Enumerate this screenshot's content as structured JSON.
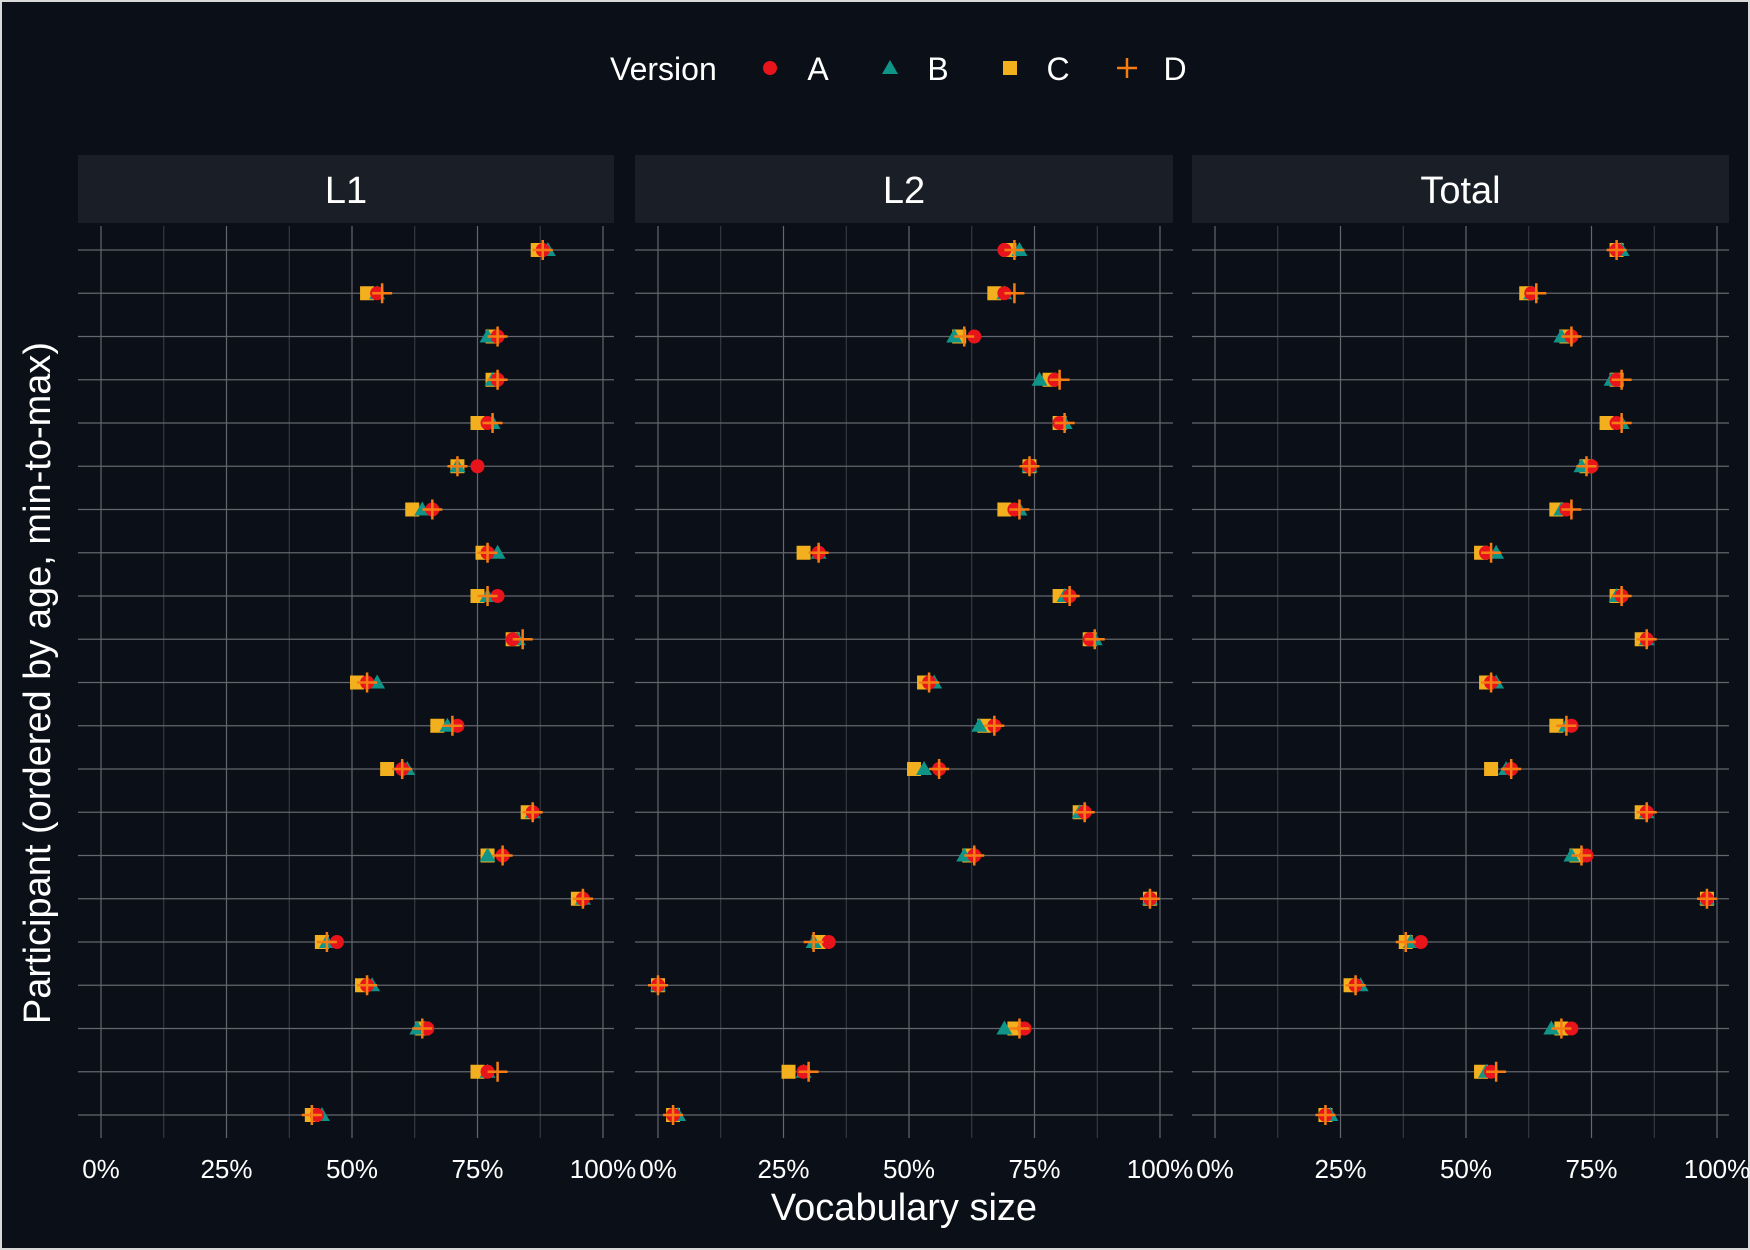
{
  "chart_data": {
    "type": "scatter",
    "xlabel": "Vocabulary size",
    "ylabel": "Participant (ordered by age, min-to-max)",
    "xlim": [
      0,
      1
    ],
    "x_ticks": [
      0,
      0.25,
      0.5,
      0.75,
      1.0
    ],
    "x_tick_labels": [
      "0%",
      "25%",
      "50%",
      "75%",
      "100%"
    ],
    "grid": true,
    "legend": {
      "title": "Version",
      "position": "top",
      "entries": [
        {
          "name": "A",
          "shape": "circle",
          "color": "#e8141c"
        },
        {
          "name": "B",
          "shape": "triangle",
          "color": "#0f9488"
        },
        {
          "name": "C",
          "shape": "square",
          "color": "#f2b01e"
        },
        {
          "name": "D",
          "shape": "cross",
          "color": "#f57d13"
        }
      ]
    },
    "n_participants": 21,
    "facets": [
      {
        "label": "L1",
        "series": [
          {
            "name": "A",
            "values": [
              0.88,
              0.55,
              0.79,
              0.79,
              0.77,
              0.75,
              0.66,
              0.77,
              0.79,
              0.82,
              0.53,
              0.71,
              0.6,
              0.86,
              0.8,
              0.96,
              0.47,
              0.53,
              0.65,
              0.77,
              0.43
            ]
          },
          {
            "name": "B",
            "values": [
              0.89,
              0.55,
              0.77,
              0.78,
              0.78,
              0.71,
              0.64,
              0.79,
              0.77,
              0.83,
              0.55,
              0.69,
              0.61,
              0.86,
              0.77,
              0.96,
              0.45,
              0.54,
              0.63,
              0.77,
              0.44
            ]
          },
          {
            "name": "C",
            "values": [
              0.87,
              0.53,
              0.78,
              0.78,
              0.75,
              0.71,
              0.62,
              0.76,
              0.75,
              0.82,
              0.51,
              0.67,
              0.57,
              0.85,
              0.77,
              0.95,
              0.44,
              0.52,
              0.64,
              0.75,
              0.42
            ]
          },
          {
            "name": "D",
            "values": [
              0.88,
              0.56,
              0.79,
              0.79,
              0.78,
              0.71,
              0.66,
              0.77,
              0.77,
              0.84,
              0.53,
              0.7,
              0.6,
              0.86,
              0.8,
              0.96,
              0.45,
              0.53,
              0.64,
              0.79,
              0.42
            ]
          }
        ]
      },
      {
        "label": "L2",
        "series": [
          {
            "name": "A",
            "values": [
              0.69,
              0.69,
              0.63,
              0.79,
              0.8,
              0.74,
              0.71,
              0.32,
              0.82,
              0.86,
              0.54,
              0.67,
              0.56,
              0.85,
              0.63,
              0.98,
              0.34,
              0.0,
              0.73,
              0.29,
              0.03
            ]
          },
          {
            "name": "B",
            "values": [
              0.72,
              0.69,
              0.59,
              0.76,
              0.81,
              0.74,
              0.72,
              0.32,
              0.81,
              0.87,
              0.55,
              0.64,
              0.53,
              0.84,
              0.61,
              0.98,
              0.31,
              0.0,
              0.69,
              0.29,
              0.04
            ]
          },
          {
            "name": "C",
            "values": [
              0.7,
              0.67,
              0.6,
              0.78,
              0.8,
              0.74,
              0.69,
              0.29,
              0.8,
              0.86,
              0.53,
              0.65,
              0.51,
              0.84,
              0.62,
              0.98,
              0.32,
              0.0,
              0.71,
              0.26,
              0.03
            ]
          },
          {
            "name": "D",
            "values": [
              0.71,
              0.71,
              0.61,
              0.8,
              0.81,
              0.74,
              0.72,
              0.32,
              0.82,
              0.87,
              0.54,
              0.67,
              0.56,
              0.85,
              0.63,
              0.98,
              0.31,
              0.0,
              0.72,
              0.3,
              0.03
            ]
          }
        ]
      },
      {
        "label": "Total",
        "series": [
          {
            "name": "A",
            "values": [
              0.8,
              0.63,
              0.71,
              0.8,
              0.8,
              0.75,
              0.7,
              0.54,
              0.81,
              0.86,
              0.55,
              0.71,
              0.59,
              0.86,
              0.74,
              0.98,
              0.41,
              0.28,
              0.71,
              0.55,
              0.22
            ]
          },
          {
            "name": "B",
            "values": [
              0.81,
              0.63,
              0.69,
              0.79,
              0.81,
              0.73,
              0.69,
              0.56,
              0.8,
              0.86,
              0.56,
              0.7,
              0.58,
              0.86,
              0.71,
              0.98,
              0.39,
              0.29,
              0.67,
              0.54,
              0.23
            ]
          },
          {
            "name": "C",
            "values": [
              0.8,
              0.62,
              0.7,
              0.8,
              0.78,
              0.74,
              0.68,
              0.53,
              0.8,
              0.85,
              0.54,
              0.68,
              0.55,
              0.85,
              0.72,
              0.98,
              0.38,
              0.27,
              0.69,
              0.53,
              0.22
            ]
          },
          {
            "name": "D",
            "values": [
              0.8,
              0.64,
              0.71,
              0.81,
              0.81,
              0.74,
              0.71,
              0.55,
              0.81,
              0.86,
              0.55,
              0.7,
              0.59,
              0.86,
              0.73,
              0.98,
              0.38,
              0.28,
              0.69,
              0.56,
              0.22
            ]
          }
        ]
      }
    ]
  }
}
